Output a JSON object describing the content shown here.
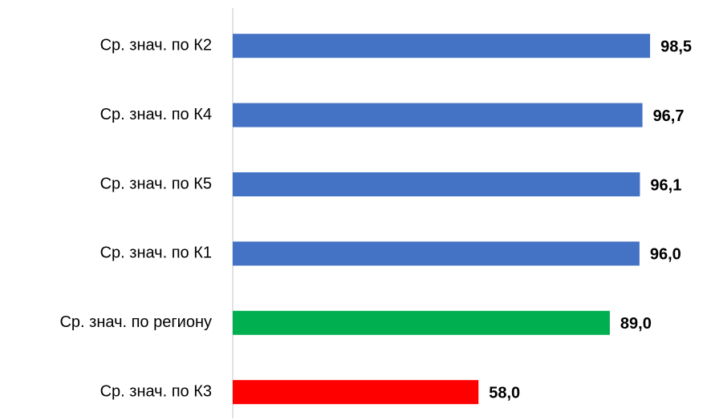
{
  "chart_data": {
    "type": "hbar",
    "categories": [
      "Ср. знач. по К2",
      "Ср. знач. по К4",
      "Ср. знач. по К5",
      "Ср. знач. по К1",
      "Ср. знач. по региону",
      "Ср. знач. по К3"
    ],
    "values": [
      98.5,
      96.7,
      96.1,
      96.0,
      89.0,
      58.0
    ],
    "value_labels": [
      "98,5",
      "96,7",
      "96,1",
      "96,0",
      "89,0",
      "58,0"
    ],
    "colors": [
      "#4472c4",
      "#4472c4",
      "#4472c4",
      "#4472c4",
      "#00b050",
      "#ff0000"
    ],
    "xlim": [
      0,
      100
    ]
  }
}
